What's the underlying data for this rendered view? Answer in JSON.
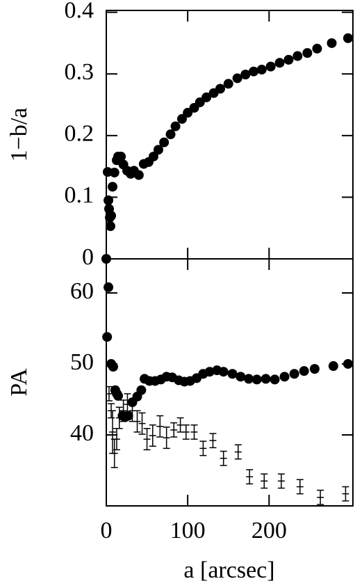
{
  "chart_data": [
    {
      "type": "scatter",
      "ylabel": "1−b/a",
      "xlim": [
        0,
        303
      ],
      "xticks": [
        0,
        100,
        200
      ],
      "ylim": [
        0,
        0.403
      ],
      "yticks": [
        0,
        0.1,
        0.2,
        0.3,
        0.4
      ],
      "series": [
        {
          "color": "#000000",
          "x": [
            0,
            1.7,
            2.6,
            3.4,
            4.3,
            5.1,
            6,
            7.7,
            10,
            12.8,
            14.5,
            18,
            21,
            25.6,
            30,
            34,
            40,
            46,
            52,
            58,
            64,
            71,
            79,
            85,
            93,
            100,
            108,
            115,
            123,
            132,
            140,
            150,
            161,
            171,
            181,
            191,
            202,
            213,
            224,
            235,
            247,
            259,
            277,
            297
          ],
          "values": [
            0,
            0.141,
            0.095,
            0.081,
            0.067,
            0.053,
            0.07,
            0.117,
            0.14,
            0.16,
            0.166,
            0.166,
            0.153,
            0.143,
            0.138,
            0.143,
            0.136,
            0.154,
            0.157,
            0.166,
            0.177,
            0.189,
            0.202,
            0.215,
            0.227,
            0.237,
            0.245,
            0.254,
            0.262,
            0.269,
            0.276,
            0.284,
            0.293,
            0.299,
            0.304,
            0.307,
            0.312,
            0.318,
            0.323,
            0.329,
            0.334,
            0.341,
            0.35,
            0.358
          ]
        }
      ]
    },
    {
      "type": "scatter",
      "ylabel": "PA",
      "xlabel": "a [arcsec]",
      "xlim": [
        0,
        303
      ],
      "xticks": [
        0,
        100,
        200
      ],
      "ylim": [
        30,
        64.8
      ],
      "yticks": [
        40,
        50,
        60
      ],
      "series": [
        {
          "color": "#000000",
          "x": [
            1,
            2.6,
            6,
            8.5,
            11,
            13,
            14.5,
            20,
            23,
            27,
            32,
            38,
            43,
            47,
            53,
            60,
            67,
            74,
            81,
            89,
            96,
            103,
            111,
            119,
            127,
            136,
            144,
            155,
            165,
            175,
            185,
            196,
            207,
            219,
            231,
            243,
            256,
            279,
            297
          ],
          "values": [
            53.8,
            60.8,
            50,
            49.6,
            46.3,
            45.8,
            45.5,
            42.7,
            42.5,
            42.7,
            44.6,
            45.4,
            46.3,
            47.9,
            47.6,
            47.6,
            47.8,
            48.2,
            48.1,
            47.7,
            47.5,
            47.6,
            48,
            48.6,
            48.9,
            49.1,
            48.9,
            48.6,
            48.2,
            47.9,
            47.8,
            47.9,
            47.8,
            48.2,
            48.6,
            49,
            49.3,
            49.7,
            50
          ]
        },
        {
          "color": "#000000",
          "x": [
            3.4,
            6,
            7.7,
            10,
            12.8,
            16,
            21,
            26,
            32,
            38,
            44,
            50,
            57,
            66,
            74,
            83,
            91,
            98,
            108,
            119,
            131,
            144,
            162,
            176,
            194,
            215,
            238,
            263,
            294
          ],
          "values": [
            45.8,
            43.4,
            40.4,
            37.4,
            39.4,
            42.4,
            43.4,
            44.3,
            43.4,
            41.9,
            41.6,
            39.4,
            39.9,
            41.2,
            39.6,
            40.7,
            41.4,
            40.4,
            40.4,
            38.1,
            39.2,
            36.7,
            37.6,
            34.1,
            33.5,
            33.5,
            32.7,
            31.2,
            31.7
          ],
          "errors": [
            1,
            1,
            3,
            2,
            1.5,
            1.5,
            1.5,
            1.5,
            1.5,
            1.5,
            1.5,
            1.5,
            1.5,
            1.5,
            1.5,
            1,
            1,
            1,
            1,
            1,
            1,
            1,
            1,
            1,
            1,
            1,
            1,
            1,
            1
          ]
        }
      ]
    }
  ]
}
